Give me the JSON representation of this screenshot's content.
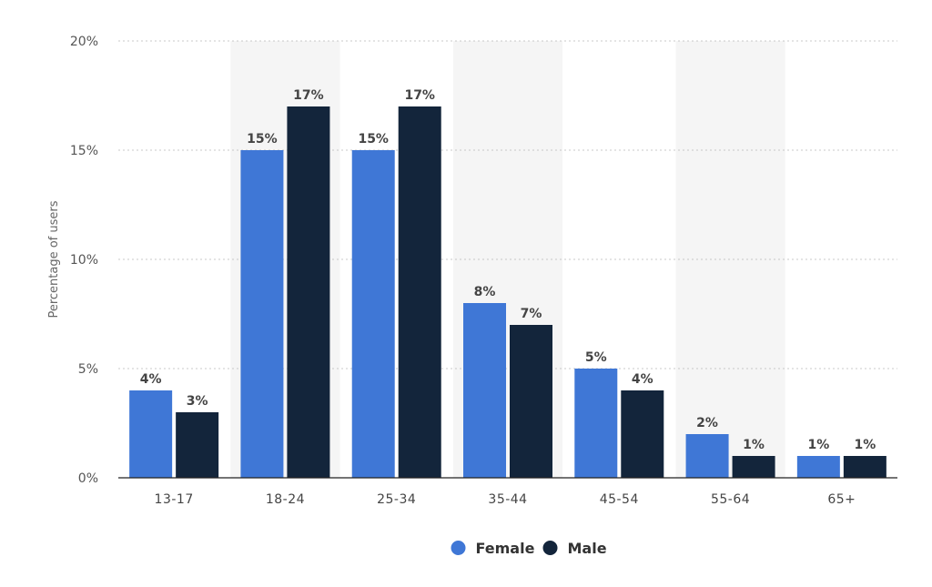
{
  "chart_data": {
    "type": "bar",
    "title": "",
    "xlabel": "",
    "ylabel": "Percentage of users",
    "ylim": [
      0,
      20
    ],
    "yticks": [
      0,
      5,
      10,
      15,
      20
    ],
    "ytick_labels": [
      "0%",
      "5%",
      "10%",
      "15%",
      "20%"
    ],
    "value_suffix": "%",
    "categories": [
      "13-17",
      "18-24",
      "25-34",
      "35-44",
      "45-54",
      "55-64",
      "65+"
    ],
    "series": [
      {
        "name": "Female",
        "color": "#3f77d6",
        "values": [
          4,
          15,
          15,
          8,
          5,
          2,
          1
        ]
      },
      {
        "name": "Male",
        "color": "#13253b",
        "values": [
          3,
          17,
          17,
          7,
          4,
          1,
          1
        ]
      }
    ],
    "grid": true,
    "legend": "bottom-center",
    "alternating_bands": true
  }
}
